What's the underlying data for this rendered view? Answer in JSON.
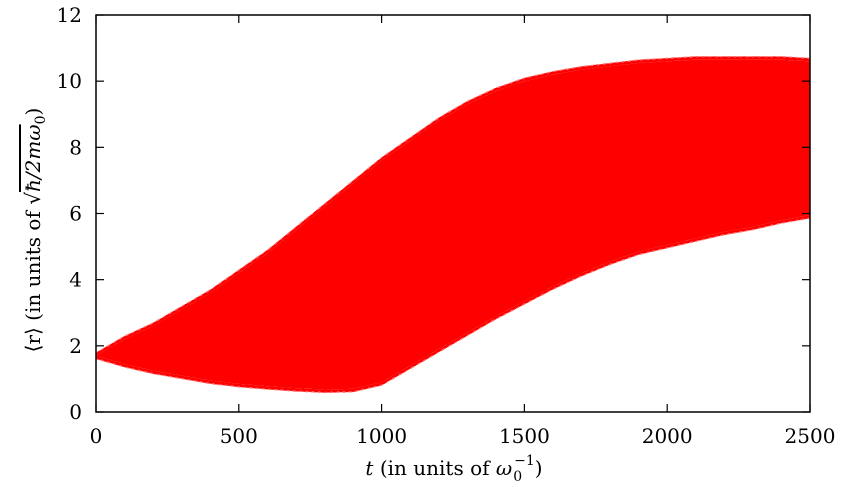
{
  "chart_data": {
    "type": "area",
    "title": "",
    "xlabel": {
      "var": "t",
      "text": " (in units of ",
      "omega": "ω",
      "sub": "0",
      "sup": "−1",
      "close": ")"
    },
    "ylabel": {
      "pre": "⟨r⟩ (in units of ",
      "radicand": "ħ/2mω",
      "sub": "0",
      "close": ")"
    },
    "xlim": [
      0,
      2500
    ],
    "ylim": [
      0,
      12
    ],
    "xticks": [
      0,
      500,
      1000,
      1500,
      2000,
      2500
    ],
    "yticks": [
      0,
      2,
      4,
      6,
      8,
      10,
      12
    ],
    "grid": false,
    "color": "#ff0000",
    "series": [
      {
        "upper": {
          "x": [
            0,
            100,
            200,
            300,
            400,
            500,
            600,
            700,
            800,
            900,
            1000,
            1100,
            1200,
            1300,
            1400,
            1500,
            1600,
            1700,
            1800,
            1900,
            2000,
            2100,
            2200,
            2300,
            2400,
            2500
          ],
          "y": [
            1.7,
            2.2,
            2.6,
            3.1,
            3.6,
            4.2,
            4.8,
            5.5,
            6.2,
            6.9,
            7.6,
            8.2,
            8.8,
            9.3,
            9.7,
            10.0,
            10.2,
            10.35,
            10.45,
            10.55,
            10.6,
            10.65,
            10.65,
            10.65,
            10.65,
            10.6
          ]
        },
        "lower": {
          "x": [
            0,
            100,
            200,
            300,
            400,
            500,
            600,
            700,
            800,
            900,
            1000,
            1100,
            1200,
            1300,
            1400,
            1500,
            1600,
            1700,
            1800,
            1900,
            2000,
            2100,
            2200,
            2300,
            2400,
            2500
          ],
          "y": [
            1.7,
            1.45,
            1.25,
            1.1,
            0.95,
            0.85,
            0.78,
            0.72,
            0.68,
            0.7,
            0.9,
            1.4,
            1.9,
            2.4,
            2.9,
            3.35,
            3.8,
            4.2,
            4.55,
            4.85,
            5.05,
            5.25,
            5.45,
            5.6,
            5.8,
            5.95
          ]
        }
      }
    ]
  }
}
